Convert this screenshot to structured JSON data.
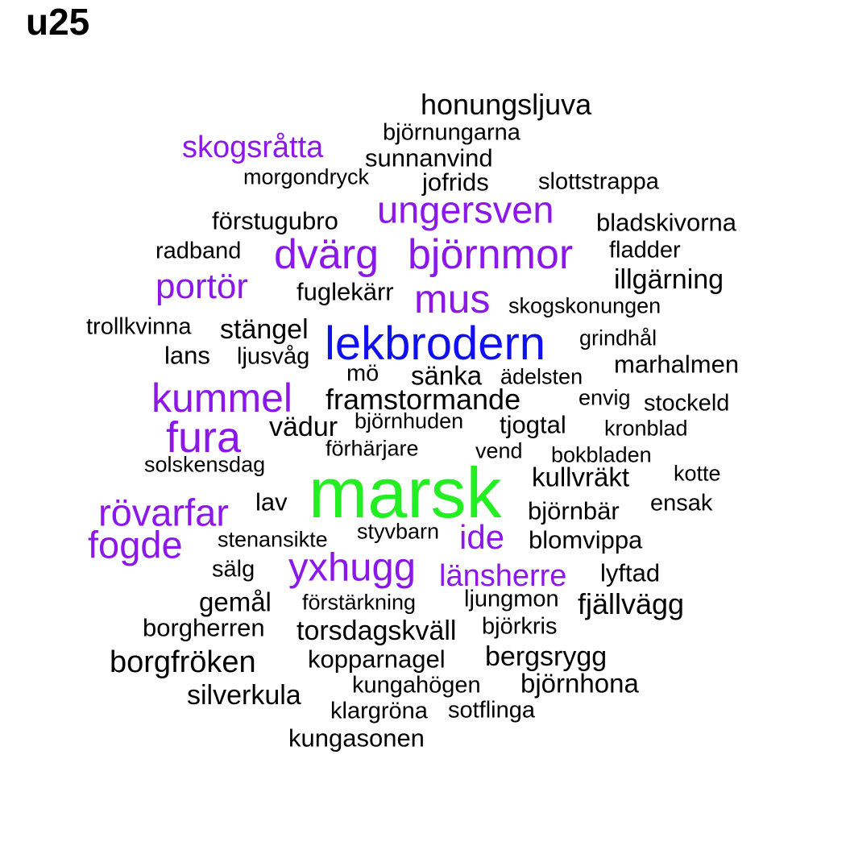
{
  "title": "u25",
  "colors": {
    "normal": "#000000",
    "purple": "#8b18e8",
    "blue": "#1010ee",
    "green": "#22ee22"
  },
  "words": [
    {
      "text": "honungsljuva",
      "color": "normal"
    },
    {
      "text": "björnungarna",
      "color": "normal"
    },
    {
      "text": "skogsråtta",
      "color": "purple"
    },
    {
      "text": "sunnanvind",
      "color": "normal"
    },
    {
      "text": "morgondryck",
      "color": "normal"
    },
    {
      "text": "jofrids",
      "color": "normal"
    },
    {
      "text": "slottstrappa",
      "color": "normal"
    },
    {
      "text": "ungersven",
      "color": "purple"
    },
    {
      "text": "förstugubro",
      "color": "normal"
    },
    {
      "text": "bladskivorna",
      "color": "normal"
    },
    {
      "text": "radband",
      "color": "normal"
    },
    {
      "text": "dvärg",
      "color": "purple"
    },
    {
      "text": "björnmor",
      "color": "purple"
    },
    {
      "text": "fladder",
      "color": "normal"
    },
    {
      "text": "portör",
      "color": "purple"
    },
    {
      "text": "illgärning",
      "color": "normal"
    },
    {
      "text": "fuglekärr",
      "color": "normal"
    },
    {
      "text": "mus",
      "color": "purple"
    },
    {
      "text": "skogskonungen",
      "color": "normal"
    },
    {
      "text": "trollkvinna",
      "color": "normal"
    },
    {
      "text": "stängel",
      "color": "normal"
    },
    {
      "text": "lekbrodern",
      "color": "blue"
    },
    {
      "text": "grindhål",
      "color": "normal"
    },
    {
      "text": "lans",
      "color": "normal"
    },
    {
      "text": "ljusvåg",
      "color": "normal"
    },
    {
      "text": "marhalmen",
      "color": "normal"
    },
    {
      "text": "mö",
      "color": "normal"
    },
    {
      "text": "sänka",
      "color": "normal"
    },
    {
      "text": "ädelsten",
      "color": "normal"
    },
    {
      "text": "kummel",
      "color": "purple"
    },
    {
      "text": "framstormande",
      "color": "normal"
    },
    {
      "text": "envig",
      "color": "normal"
    },
    {
      "text": "stockeld",
      "color": "normal"
    },
    {
      "text": "fura",
      "color": "purple"
    },
    {
      "text": "vädur",
      "color": "normal"
    },
    {
      "text": "björnhuden",
      "color": "normal"
    },
    {
      "text": "tjogtal",
      "color": "normal"
    },
    {
      "text": "kronblad",
      "color": "normal"
    },
    {
      "text": "förhärjare",
      "color": "normal"
    },
    {
      "text": "vend",
      "color": "normal"
    },
    {
      "text": "bokbladen",
      "color": "normal"
    },
    {
      "text": "solskensdag",
      "color": "normal"
    },
    {
      "text": "marsk",
      "color": "green"
    },
    {
      "text": "kullvräkt",
      "color": "normal"
    },
    {
      "text": "kotte",
      "color": "normal"
    },
    {
      "text": "rövarfar",
      "color": "purple"
    },
    {
      "text": "lav",
      "color": "normal"
    },
    {
      "text": "björnbär",
      "color": "normal"
    },
    {
      "text": "ensak",
      "color": "normal"
    },
    {
      "text": "fogde",
      "color": "purple"
    },
    {
      "text": "stenansikte",
      "color": "normal"
    },
    {
      "text": "styvbarn",
      "color": "normal"
    },
    {
      "text": "ide",
      "color": "purple"
    },
    {
      "text": "blomvippa",
      "color": "normal"
    },
    {
      "text": "sälg",
      "color": "normal"
    },
    {
      "text": "yxhugg",
      "color": "purple"
    },
    {
      "text": "länsherre",
      "color": "purple"
    },
    {
      "text": "lyftad",
      "color": "normal"
    },
    {
      "text": "gemål",
      "color": "normal"
    },
    {
      "text": "förstärkning",
      "color": "normal"
    },
    {
      "text": "ljungmon",
      "color": "normal"
    },
    {
      "text": "fjällvägg",
      "color": "normal"
    },
    {
      "text": "borgherren",
      "color": "normal"
    },
    {
      "text": "torsdagskväll",
      "color": "normal"
    },
    {
      "text": "björkris",
      "color": "normal"
    },
    {
      "text": "borgfröken",
      "color": "normal"
    },
    {
      "text": "kopparnagel",
      "color": "normal"
    },
    {
      "text": "bergsrygg",
      "color": "normal"
    },
    {
      "text": "kungahögen",
      "color": "normal"
    },
    {
      "text": "björnhona",
      "color": "normal"
    },
    {
      "text": "silverkula",
      "color": "normal"
    },
    {
      "text": "klargröna",
      "color": "normal"
    },
    {
      "text": "sotflinga",
      "color": "normal"
    },
    {
      "text": "kungasonen",
      "color": "normal"
    }
  ]
}
